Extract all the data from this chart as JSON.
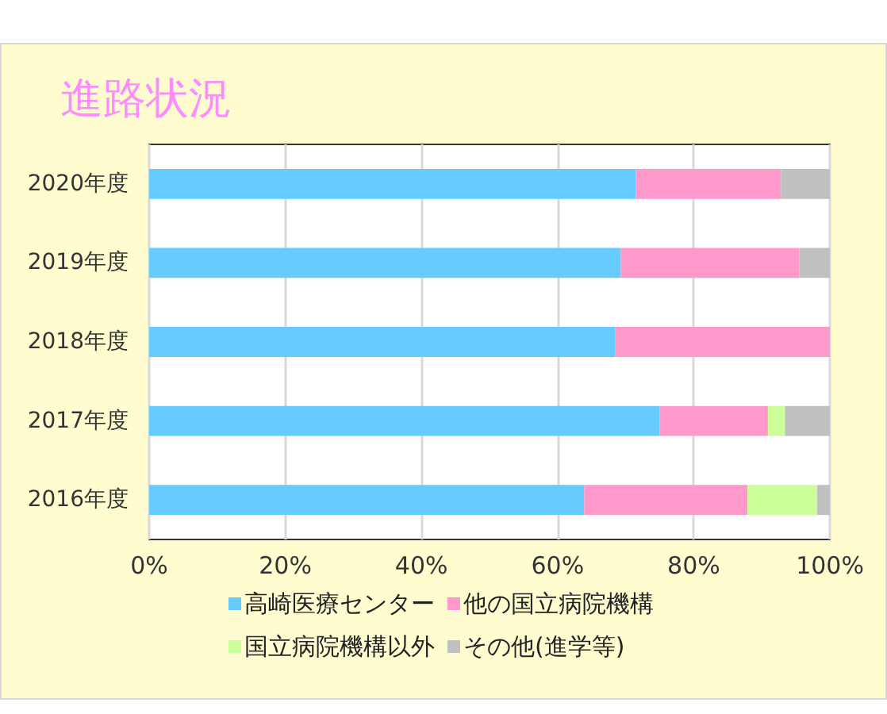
{
  "chart_data": {
    "type": "bar",
    "orientation": "horizontal",
    "stacked": true,
    "title": "進路状況",
    "categories": [
      "2020年度",
      "2019年度",
      "2018年度",
      "2017年度",
      "2016年度"
    ],
    "series": [
      {
        "name": "高崎医療センター",
        "color": "#66ccff",
        "values": [
          71.5,
          69.3,
          68.5,
          75.0,
          63.9
        ]
      },
      {
        "name": "他の国立病院機構",
        "color": "#ff99cc",
        "values": [
          21.3,
          26.2,
          31.5,
          15.9,
          24.0
        ]
      },
      {
        "name": "国立病院機構以外",
        "color": "#ccff99",
        "values": [
          0,
          0,
          0,
          2.5,
          10.2
        ]
      },
      {
        "name": "その他(進学等)",
        "color": "#c0c0c0",
        "values": [
          7.2,
          4.5,
          0,
          6.6,
          1.9
        ]
      }
    ],
    "xlim": [
      0,
      100
    ],
    "xticks": [
      {
        "value": 0,
        "label": "0%"
      },
      {
        "value": 20,
        "label": "20%"
      },
      {
        "value": 40,
        "label": "40%"
      },
      {
        "value": 60,
        "label": "60%"
      },
      {
        "value": 80,
        "label": "80%"
      },
      {
        "value": 100,
        "label": "100%"
      }
    ],
    "grid": "x",
    "legend": "bottom"
  }
}
